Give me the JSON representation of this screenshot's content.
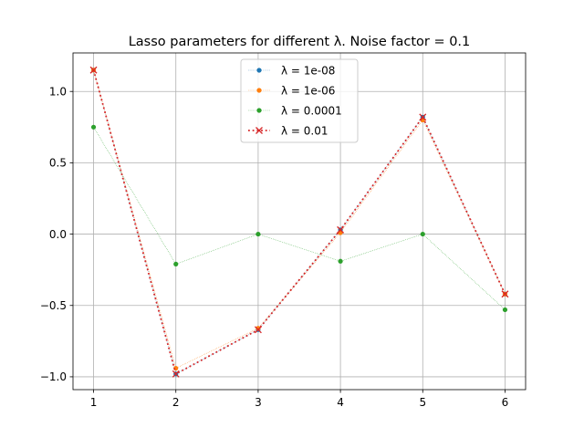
{
  "chart_data": {
    "type": "line",
    "title": "Lasso parameters for different λ. Noise factor = 0.1",
    "x": [
      1,
      2,
      3,
      4,
      5,
      6
    ],
    "xticks": [
      "1",
      "2",
      "3",
      "4",
      "5",
      "6"
    ],
    "xlim": [
      0.75,
      6.25
    ],
    "ylim": [
      -1.09,
      1.27
    ],
    "yticks": [
      -1.0,
      -0.5,
      0.0,
      0.5,
      1.0
    ],
    "ytick_labels": [
      "−1.0",
      "−0.5",
      "0.0",
      "0.5",
      "1.0"
    ],
    "grid": true,
    "legend_position": "top-center",
    "series": [
      {
        "name": "λ = 1e-08",
        "color": "#1f77b4",
        "marker": "dot",
        "line": "dotted-thin",
        "values": [
          1.15,
          -0.98,
          -0.67,
          0.03,
          0.82,
          -0.42
        ]
      },
      {
        "name": "λ = 1e-06",
        "color": "#ff7f0e",
        "marker": "dot",
        "line": "dotted-thin",
        "values": [
          1.15,
          -0.94,
          -0.66,
          0.01,
          0.8,
          -0.42
        ]
      },
      {
        "name": "λ = 0.0001",
        "color": "#2ca02c",
        "marker": "dot",
        "line": "dotted-thin",
        "values": [
          0.75,
          -0.21,
          0.0,
          -0.19,
          0.0,
          -0.53
        ]
      },
      {
        "name": "λ = 0.01",
        "color": "#d62728",
        "marker": "x",
        "line": "dotted-thick",
        "values": [
          1.15,
          -0.98,
          -0.67,
          0.03,
          0.82,
          -0.42
        ]
      }
    ]
  }
}
